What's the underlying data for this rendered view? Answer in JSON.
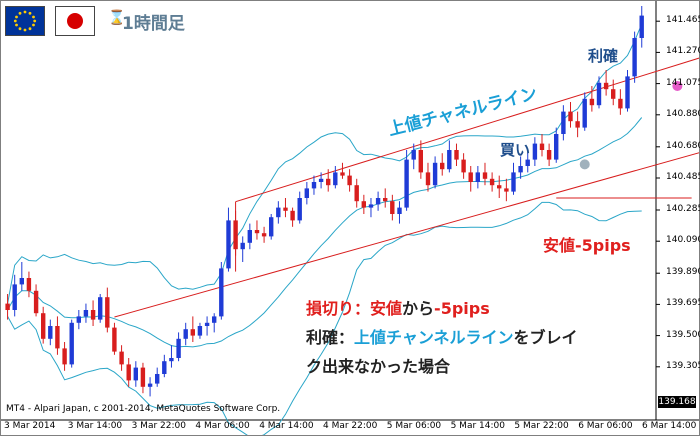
{
  "header": {
    "flags": [
      "eu-flag-icon",
      "japan-flag-icon"
    ],
    "timeframe_icon": "hourglass-icon",
    "timeframe_label": "1時間足"
  },
  "annotations": {
    "channel_label": "上値チャネルライン",
    "buy_label": "買い",
    "take_profit_label": "利確",
    "low_label": "安値-5pips"
  },
  "note": {
    "line1": {
      "prefix": "損切り：",
      "part1": "安値",
      "part2": "から",
      "part3": "-5pips"
    },
    "line2": {
      "prefix": "利確：",
      "part1": "上値チャンネルライン",
      "part2": "をブレイ"
    },
    "line3": "ク出来なかった場合"
  },
  "price_box": "139.168",
  "copyright": "MT4 - Alpari Japan, c 2001-2014, MetaQuotes Software Corp.",
  "colors": {
    "bull": "#1f3bd6",
    "bear": "#d81e1e",
    "bollinger": "#2aa6c8",
    "channel": "#d81e1e",
    "buy_marker": "#8fa3b0",
    "tp_marker": "#e040c0"
  },
  "chart_data": {
    "type": "candlestick",
    "instrument": "EUR/JPY",
    "timeframe": "1時間足",
    "y_axis": {
      "range": [
        139.06,
        141.56
      ],
      "tick_labels": [
        "141.465",
        "141.270",
        "141.075",
        "140.880",
        "140.680",
        "140.485",
        "140.285",
        "140.090",
        "139.890",
        "139.695",
        "139.500",
        "139.305"
      ]
    },
    "x_axis": {
      "tick_labels": [
        "3 Mar 2014",
        "3 Mar 14:00",
        "3 Mar 22:00",
        "4 Mar 06:00",
        "4 Mar 14:00",
        "4 Mar 22:00",
        "5 Mar 06:00",
        "5 Mar 14:00",
        "5 Mar 22:00",
        "6 Mar 06:00",
        "6 Mar 14:00"
      ]
    },
    "channel": {
      "upper": {
        "from": {
          "bar": 32,
          "price": 140.337
        },
        "to": {
          "bar": 100,
          "price": 141.275
        }
      },
      "lower": {
        "from": {
          "bar": 15,
          "price": 139.616
        },
        "to": {
          "bar": 100,
          "price": 140.68
        }
      }
    },
    "levels": [
      {
        "name": "安値-5pips",
        "price": 140.36,
        "from_bar": 77,
        "to_bar": 96
      }
    ],
    "markers": [
      {
        "name": "買い",
        "bar": 81,
        "price": 140.57
      },
      {
        "name": "利確",
        "bar": 94,
        "price": 141.06
      }
    ],
    "candles": [
      [
        139.7,
        139.76,
        139.6,
        139.66
      ],
      [
        139.66,
        139.88,
        139.62,
        139.82
      ],
      [
        139.82,
        139.96,
        139.78,
        139.86
      ],
      [
        139.86,
        139.9,
        139.74,
        139.78
      ],
      [
        139.78,
        139.82,
        139.62,
        139.64
      ],
      [
        139.64,
        139.68,
        139.45,
        139.48
      ],
      [
        139.48,
        139.6,
        139.44,
        139.56
      ],
      [
        139.56,
        139.62,
        139.38,
        139.42
      ],
      [
        139.42,
        139.46,
        139.28,
        139.32
      ],
      [
        139.32,
        139.6,
        139.3,
        139.58
      ],
      [
        139.58,
        139.66,
        139.54,
        139.62
      ],
      [
        139.62,
        139.7,
        139.58,
        139.66
      ],
      [
        139.66,
        139.72,
        139.56,
        139.6
      ],
      [
        139.6,
        139.76,
        139.58,
        139.74
      ],
      [
        139.74,
        139.8,
        139.52,
        139.55
      ],
      [
        139.55,
        139.58,
        139.38,
        139.4
      ],
      [
        139.4,
        139.44,
        139.28,
        139.32
      ],
      [
        139.32,
        139.36,
        139.18,
        139.22
      ],
      [
        139.22,
        139.34,
        139.18,
        139.3
      ],
      [
        139.3,
        139.33,
        139.14,
        139.18
      ],
      [
        139.18,
        139.24,
        139.12,
        139.2
      ],
      [
        139.2,
        139.3,
        139.18,
        139.26
      ],
      [
        139.26,
        139.38,
        139.24,
        139.34
      ],
      [
        139.34,
        139.44,
        139.3,
        139.36
      ],
      [
        139.36,
        139.52,
        139.34,
        139.48
      ],
      [
        139.48,
        139.58,
        139.44,
        139.54
      ],
      [
        139.54,
        139.62,
        139.46,
        139.5
      ],
      [
        139.5,
        139.58,
        139.48,
        139.56
      ],
      [
        139.56,
        139.62,
        139.5,
        139.58
      ],
      [
        139.58,
        139.64,
        139.52,
        139.62
      ],
      [
        139.62,
        139.96,
        139.6,
        139.92
      ],
      [
        139.92,
        140.3,
        139.9,
        140.22
      ],
      [
        140.22,
        140.28,
        140.0,
        140.04
      ],
      [
        140.04,
        140.12,
        139.96,
        140.08
      ],
      [
        140.08,
        140.2,
        140.04,
        140.16
      ],
      [
        140.16,
        140.22,
        140.1,
        140.14
      ],
      [
        140.14,
        140.18,
        140.08,
        140.12
      ],
      [
        140.12,
        140.26,
        140.1,
        140.24
      ],
      [
        140.24,
        140.34,
        140.2,
        140.3
      ],
      [
        140.3,
        140.36,
        140.24,
        140.28
      ],
      [
        140.28,
        140.3,
        140.18,
        140.22
      ],
      [
        140.22,
        140.4,
        140.2,
        140.36
      ],
      [
        140.36,
        140.46,
        140.32,
        140.42
      ],
      [
        140.42,
        140.5,
        140.38,
        140.46
      ],
      [
        140.46,
        140.52,
        140.42,
        140.48
      ],
      [
        140.48,
        140.54,
        140.4,
        140.44
      ],
      [
        140.44,
        140.56,
        140.42,
        140.52
      ],
      [
        140.52,
        140.58,
        140.48,
        140.5
      ],
      [
        140.5,
        140.54,
        140.4,
        140.44
      ],
      [
        140.44,
        140.48,
        140.3,
        140.34
      ],
      [
        140.34,
        140.38,
        140.26,
        140.3
      ],
      [
        140.3,
        140.36,
        140.24,
        140.32
      ],
      [
        140.32,
        140.4,
        140.28,
        140.36
      ],
      [
        140.36,
        140.42,
        140.3,
        140.34
      ],
      [
        140.34,
        140.38,
        140.22,
        140.26
      ],
      [
        140.26,
        140.34,
        140.2,
        140.3
      ],
      [
        140.3,
        140.66,
        140.28,
        140.6
      ],
      [
        140.6,
        140.7,
        140.54,
        140.66
      ],
      [
        140.66,
        140.72,
        140.48,
        140.52
      ],
      [
        140.52,
        140.58,
        140.4,
        140.44
      ],
      [
        140.44,
        140.62,
        140.42,
        140.58
      ],
      [
        140.58,
        140.64,
        140.5,
        140.54
      ],
      [
        140.54,
        140.72,
        140.52,
        140.66
      ],
      [
        140.66,
        140.7,
        140.56,
        140.6
      ],
      [
        140.6,
        140.64,
        140.48,
        140.52
      ],
      [
        140.52,
        140.56,
        140.4,
        140.46
      ],
      [
        140.46,
        140.56,
        140.42,
        140.52
      ],
      [
        140.52,
        140.58,
        140.44,
        140.48
      ],
      [
        140.48,
        140.52,
        140.4,
        140.44
      ],
      [
        140.44,
        140.5,
        140.36,
        140.42
      ],
      [
        140.42,
        140.48,
        140.34,
        140.4
      ],
      [
        140.4,
        140.58,
        140.38,
        140.52
      ],
      [
        140.52,
        140.62,
        140.48,
        140.56
      ],
      [
        140.56,
        140.66,
        140.52,
        140.6
      ],
      [
        140.6,
        140.74,
        140.56,
        140.7
      ],
      [
        140.7,
        140.76,
        140.62,
        140.66
      ],
      [
        140.66,
        140.7,
        140.56,
        140.6
      ],
      [
        140.6,
        140.8,
        140.58,
        140.76
      ],
      [
        140.76,
        140.94,
        140.72,
        140.9
      ],
      [
        140.9,
        140.96,
        140.8,
        140.84
      ],
      [
        140.84,
        140.9,
        140.74,
        140.8
      ],
      [
        140.8,
        141.02,
        140.78,
        140.98
      ],
      [
        140.98,
        141.06,
        140.9,
        140.94
      ],
      [
        140.94,
        141.12,
        140.92,
        141.08
      ],
      [
        141.08,
        141.16,
        141.0,
        141.04
      ],
      [
        141.04,
        141.1,
        140.94,
        140.98
      ],
      [
        140.98,
        141.04,
        140.88,
        140.92
      ],
      [
        140.92,
        141.16,
        140.9,
        141.12
      ],
      [
        141.12,
        141.4,
        141.08,
        141.36
      ],
      [
        141.36,
        141.56,
        141.3,
        141.5
      ]
    ]
  }
}
